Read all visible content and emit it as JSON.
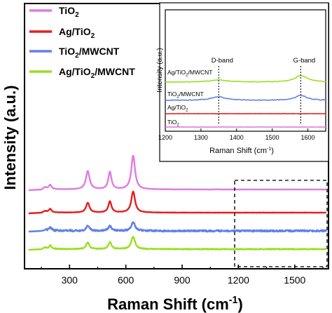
{
  "chart_data": [
    {
      "type": "line",
      "xlabel": "Raman Shift (cm",
      "xlabel_sup": "-1",
      "xlabel_end": ")",
      "ylabel": "Intensity (a.u.)",
      "xlim": [
        60,
        1680
      ],
      "x_ticks": [
        "300",
        "600",
        "900",
        "1200",
        "1500"
      ],
      "x_tick_values": [
        300,
        600,
        900,
        1200,
        1500
      ],
      "legend_position": "top-left",
      "series": [
        {
          "name": "TiO2",
          "label_main": "TiO",
          "label_sub": "2",
          "label_end": "",
          "color": "#e07be0",
          "baseline": 270,
          "noise": 0.15,
          "peaks": [
            [
              143,
              40,
              8
            ],
            [
              197,
              6,
              8
            ],
            [
              397,
              26,
              12
            ],
            [
              515,
              25,
              10
            ],
            [
              639,
              48,
              12
            ]
          ]
        },
        {
          "name": "Ag/TiO2",
          "label_main": "Ag/TiO",
          "label_sub": "2",
          "label_end": "",
          "color": "#e81e1e",
          "baseline": 303,
          "noise": 0.2,
          "peaks": [
            [
              143,
              38,
              7
            ],
            [
              197,
              5,
              8
            ],
            [
              397,
              14,
              11
            ],
            [
              515,
              16,
              10
            ],
            [
              639,
              30,
              12
            ]
          ]
        },
        {
          "name": "TiO2/MWCNT",
          "label_main": "TiO",
          "label_sub": "2",
          "label_end": "/MWCNT",
          "color": "#6080e8",
          "baseline": 329,
          "noise": 1.2,
          "peaks": [
            [
              143,
              31,
              7
            ],
            [
              197,
              5,
              8
            ],
            [
              397,
              7,
              11
            ],
            [
              515,
              7,
              10
            ],
            [
              639,
              12,
              12
            ]
          ]
        },
        {
          "name": "Ag/TiO2/MWCNT",
          "label_main": "Ag/TiO",
          "label_sub": "2",
          "label_end": "/MWCNT",
          "color": "#98e020",
          "baseline": 355,
          "noise": 0.6,
          "peaks": [
            [
              143,
              33,
              7
            ],
            [
              197,
              5,
              8
            ],
            [
              397,
              9,
              11
            ],
            [
              515,
              10,
              10
            ],
            [
              639,
              18,
              12
            ]
          ]
        }
      ]
    },
    {
      "type": "line",
      "xlabel": "Raman Shift (cm",
      "xlabel_sup": "-1",
      "xlabel_end": ")",
      "ylabel": "Intensity (a.u.)",
      "xlim": [
        1200,
        1650
      ],
      "x_ticks": [
        "1200",
        "1300",
        "1400",
        "1500",
        "1600"
      ],
      "x_tick_values": [
        1200,
        1300,
        1400,
        1500,
        1600
      ],
      "annotations": [
        {
          "text": "D-band",
          "x": 1350
        },
        {
          "text": "G-band",
          "x": 1580
        }
      ],
      "series": [
        {
          "name": "Ag/TiO2/MWCNT",
          "label_main": "Ag/TiO",
          "label_sub": "2",
          "label_end": "/MWCNT",
          "color": "#98e020",
          "baseline": 117,
          "noise": 0.4,
          "peaks": [
            [
              1350,
              3,
              30
            ],
            [
              1580,
              9,
              22
            ]
          ]
        },
        {
          "name": "TiO2/MWCNT",
          "label_main": "TiO",
          "label_sub": "2",
          "label_end": "/MWCNT",
          "color": "#6080e8",
          "baseline": 143,
          "noise": 0.5,
          "peaks": [
            [
              1350,
              5,
              25
            ],
            [
              1580,
              7,
              20
            ]
          ]
        },
        {
          "name": "Ag/TiO2",
          "label_main": "Ag/TiO",
          "label_sub": "2",
          "label_end": "",
          "color": "#e81e1e",
          "baseline": 162,
          "noise": 0.2,
          "peaks": []
        },
        {
          "name": "TiO2",
          "label_main": "TiO",
          "label_sub": "2",
          "label_end": "",
          "color": "#e07be0",
          "baseline": 181,
          "noise": 0.2,
          "peaks": []
        }
      ]
    }
  ]
}
